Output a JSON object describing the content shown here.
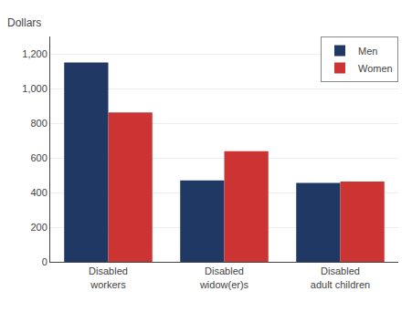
{
  "chart_data": {
    "type": "bar",
    "categories": [
      "Disabled\nworkers",
      "Disabled\nwidow(er)s",
      "Disabled\nadult children"
    ],
    "series": [
      {
        "name": "Men",
        "color": "#1f3864",
        "values": [
          1150,
          470,
          455
        ]
      },
      {
        "name": "Women",
        "color": "#cc3333",
        "values": [
          862,
          638,
          463
        ]
      }
    ],
    "ylabel": "Dollars",
    "ylim": [
      0,
      1300
    ],
    "yticks": [
      0,
      200,
      400,
      600,
      800,
      {
        "value": 1000,
        "label": "1,000"
      },
      {
        "value": 1200,
        "label": "1,200"
      }
    ],
    "grid": true,
    "legend": "upper right"
  }
}
